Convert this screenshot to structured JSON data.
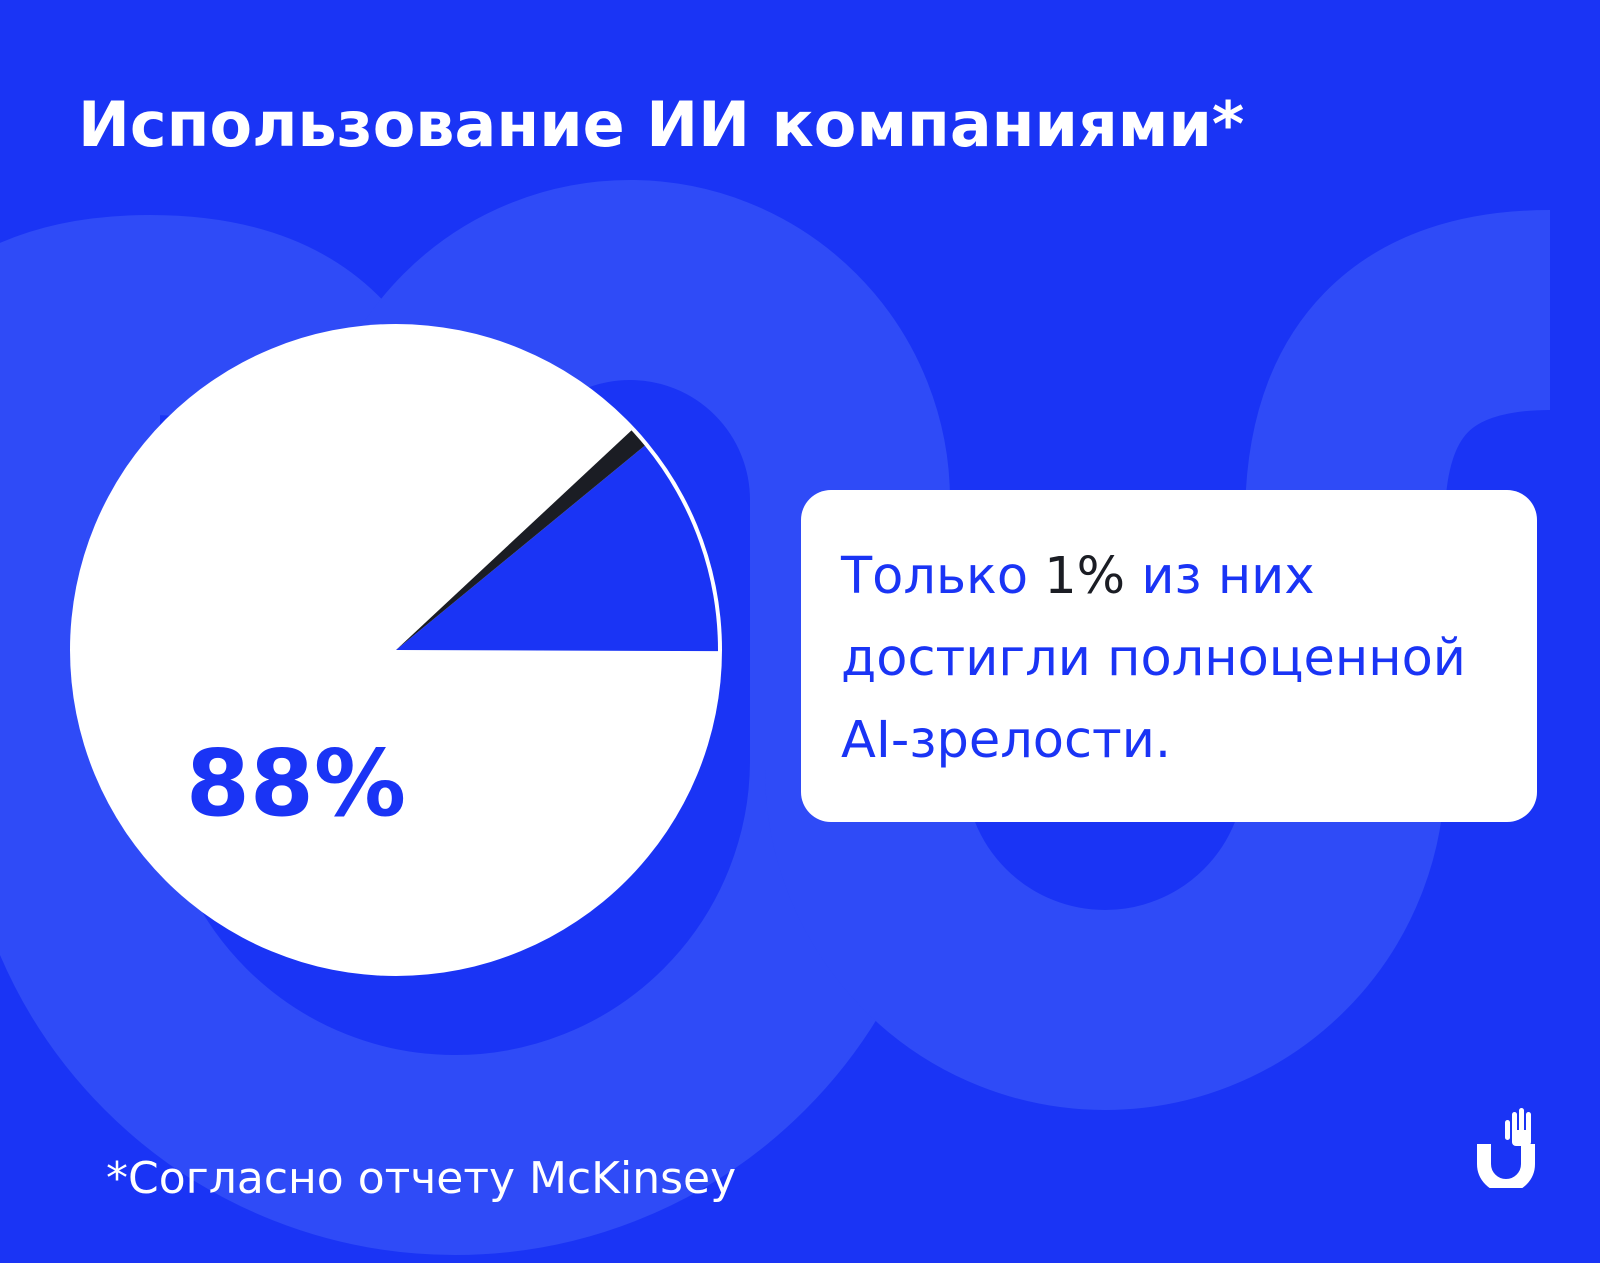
{
  "title": "Использование ИИ компаниями*",
  "chart_data": {
    "type": "pie",
    "unit": "%",
    "slices": [
      {
        "label": "88%",
        "value": 88,
        "color": "#ffffff"
      },
      {
        "label": "",
        "value": 11,
        "color": "#1a34f5"
      },
      {
        "label": "",
        "value": 1,
        "color": "#1b1d24"
      }
    ]
  },
  "callout": {
    "line1_before": "Только ",
    "line1_highlight": "1%",
    "line1_after": " из них",
    "line2": "достигли полноценной",
    "line3": "AI-зрелости."
  },
  "footnote": "*Согласно отчету  McKinsey",
  "colors": {
    "background": "#1a34f5",
    "decoration": "#2f4bf7",
    "white": "#ffffff",
    "dark": "#1b1d24"
  },
  "logo": {
    "icon": "hand-u-logo-icon"
  }
}
